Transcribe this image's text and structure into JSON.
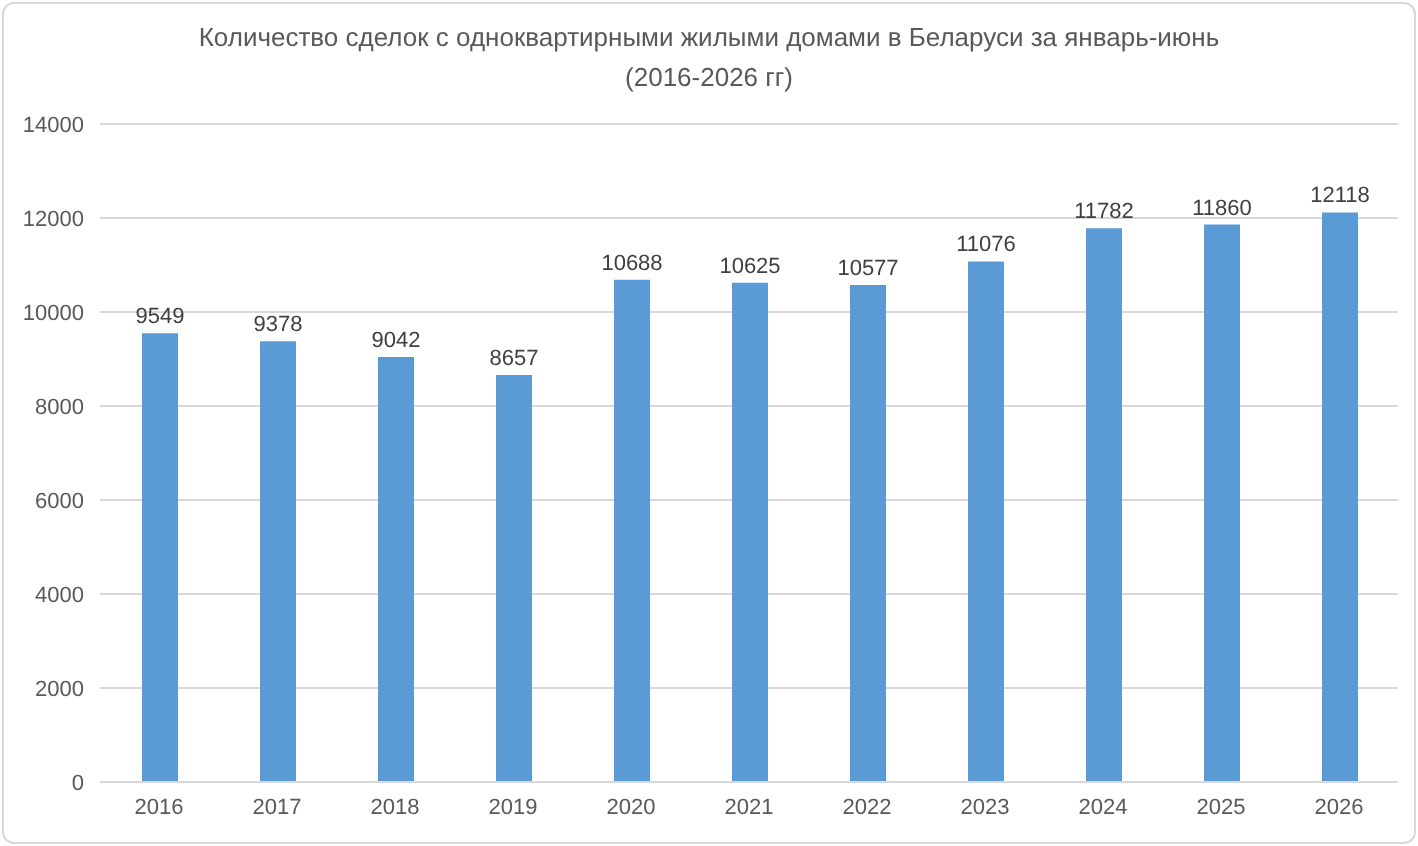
{
  "chart_data": {
    "type": "bar",
    "title": "Количество сделок с одноквартирными жилыми домами в Беларуси за январь-июнь",
    "subtitle": "(2016-2026 гг)",
    "categories": [
      "2016",
      "2017",
      "2018",
      "2019",
      "2020",
      "2021",
      "2022",
      "2023",
      "2024",
      "2025",
      "2026"
    ],
    "values": [
      9549,
      9378,
      9042,
      8657,
      10688,
      10625,
      10577,
      11076,
      11782,
      11860,
      12118
    ],
    "color": "#5b9bd5",
    "ylim": [
      0,
      14000
    ],
    "yticks": [
      0,
      2000,
      4000,
      6000,
      8000,
      10000,
      12000,
      14000
    ],
    "grid": "y",
    "data_labels": true
  }
}
